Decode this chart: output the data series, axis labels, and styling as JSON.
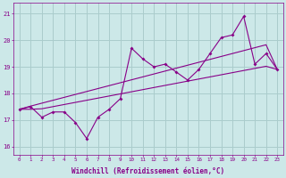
{
  "xlabel": "Windchill (Refroidissement éolien,°C)",
  "bg_color": "#cce8e8",
  "line_color": "#880088",
  "grid_color": "#aacccc",
  "x_data": [
    0,
    1,
    2,
    3,
    4,
    5,
    6,
    7,
    8,
    9,
    10,
    11,
    12,
    13,
    14,
    15,
    16,
    17,
    18,
    19,
    20,
    21,
    22,
    23
  ],
  "line1_y": [
    17.4,
    17.5,
    17.1,
    17.3,
    17.3,
    16.9,
    16.3,
    17.1,
    17.4,
    17.8,
    19.7,
    19.3,
    19.0,
    19.1,
    18.8,
    18.5,
    18.9,
    19.5,
    20.1,
    20.2,
    20.9,
    19.1,
    19.5,
    18.9
  ],
  "line2_y": [
    17.4,
    17.52,
    17.63,
    17.74,
    17.85,
    17.96,
    18.07,
    18.18,
    18.29,
    18.4,
    18.51,
    18.62,
    18.73,
    18.84,
    18.95,
    19.06,
    19.17,
    19.28,
    19.39,
    19.5,
    19.61,
    19.72,
    19.83,
    18.9
  ],
  "line3_y": [
    17.4,
    17.4,
    17.42,
    17.5,
    17.58,
    17.66,
    17.74,
    17.82,
    17.9,
    17.98,
    18.06,
    18.14,
    18.22,
    18.3,
    18.38,
    18.46,
    18.54,
    18.62,
    18.7,
    18.78,
    18.86,
    18.94,
    19.02,
    18.9
  ],
  "ylim": [
    15.7,
    21.4
  ],
  "yticks": [
    16,
    17,
    18,
    19,
    20,
    21
  ],
  "xlim": [
    -0.5,
    23.5
  ],
  "xticks": [
    0,
    1,
    2,
    3,
    4,
    5,
    6,
    7,
    8,
    9,
    10,
    11,
    12,
    13,
    14,
    15,
    16,
    17,
    18,
    19,
    20,
    21,
    22,
    23
  ]
}
